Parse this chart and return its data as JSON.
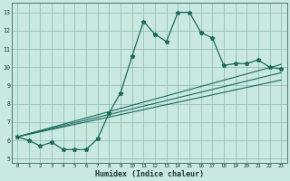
{
  "xlabel": "Humidex (Indice chaleur)",
  "background_color": "#c8e8e0",
  "grid_color": "#8cb8b0",
  "line_color": "#1a6b5a",
  "xlim": [
    -0.5,
    23.5
  ],
  "ylim": [
    4.75,
    13.5
  ],
  "xticks": [
    0,
    1,
    2,
    3,
    4,
    5,
    6,
    7,
    8,
    9,
    10,
    11,
    12,
    13,
    14,
    15,
    16,
    17,
    18,
    19,
    20,
    21,
    22,
    23
  ],
  "yticks": [
    5,
    6,
    7,
    8,
    9,
    10,
    11,
    12,
    13
  ],
  "main_x": [
    0,
    1,
    2,
    3,
    4,
    5,
    6,
    7,
    8,
    9,
    10,
    11,
    12,
    13,
    14,
    15,
    16,
    17,
    18,
    19,
    20,
    21,
    22,
    23
  ],
  "main_y": [
    6.2,
    6.0,
    5.7,
    5.9,
    5.5,
    5.5,
    5.5,
    6.1,
    7.5,
    8.6,
    10.6,
    12.5,
    11.8,
    11.4,
    13.0,
    13.0,
    11.9,
    11.6,
    10.1,
    10.2,
    10.2,
    10.4,
    10.0,
    9.9
  ],
  "trend1_x": [
    0,
    23
  ],
  "trend1_y": [
    6.2,
    10.15
  ],
  "trend2_x": [
    0,
    23
  ],
  "trend2_y": [
    6.2,
    9.7
  ],
  "trend3_x": [
    0,
    23
  ],
  "trend3_y": [
    6.2,
    9.3
  ]
}
